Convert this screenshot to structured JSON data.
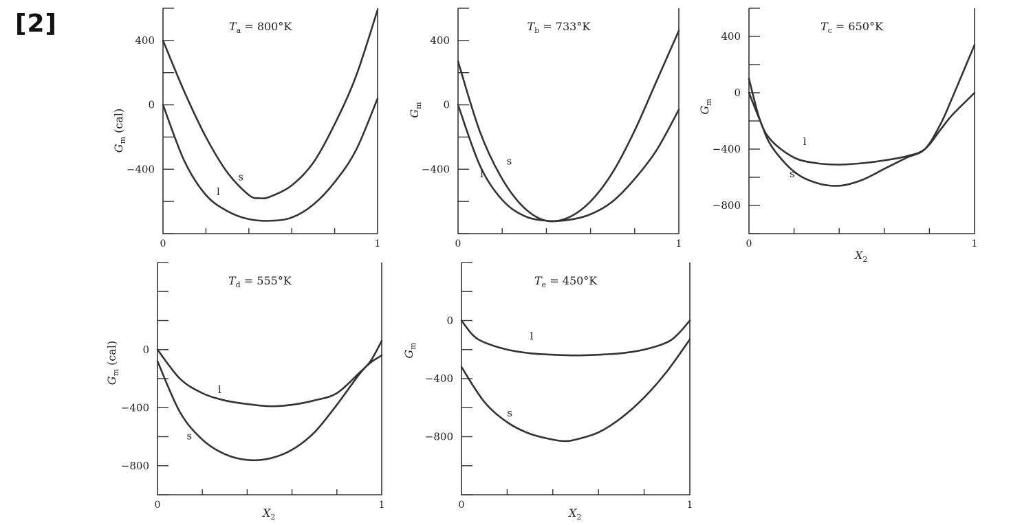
{
  "figure_label": "[2]",
  "chart_data": [
    {
      "type": "line",
      "title": "Ta = 800°K",
      "title_parts": {
        "sym": "T",
        "sub": "a",
        "rest": " = 800°K"
      },
      "xlabel": "",
      "ylabel": "Gm (cal)",
      "ylabel_parts": {
        "sym": "G",
        "sub": "m",
        "rest": " (cal)"
      },
      "xlim": [
        0,
        1
      ],
      "ylim": [
        -800,
        600
      ],
      "yticks": [
        400,
        0,
        -400
      ],
      "yticklabels": [
        "400",
        "0",
        "−400"
      ],
      "xticks": [
        0,
        1
      ],
      "xticklabels": [
        "0",
        "1"
      ],
      "series": [
        {
          "name": "s",
          "x": [
            0,
            0.1,
            0.2,
            0.3,
            0.4,
            0.45,
            0.5,
            0.6,
            0.7,
            0.8,
            0.9,
            1.0
          ],
          "y": [
            400,
            80,
            -200,
            -420,
            -560,
            -580,
            -570,
            -500,
            -360,
            -120,
            180,
            590
          ]
        },
        {
          "name": "l",
          "x": [
            0,
            0.1,
            0.2,
            0.3,
            0.4,
            0.5,
            0.6,
            0.7,
            0.8,
            0.9,
            1.0
          ],
          "y": [
            0,
            -350,
            -560,
            -660,
            -710,
            -720,
            -700,
            -620,
            -480,
            -280,
            40
          ]
        }
      ],
      "labels": [
        {
          "text": "s",
          "x": 0.35,
          "y": -470
        },
        {
          "text": "l",
          "x": 0.25,
          "y": -560
        }
      ]
    },
    {
      "type": "line",
      "title": "Tb = 733°K",
      "title_parts": {
        "sym": "T",
        "sub": "b",
        "rest": " = 733°K"
      },
      "xlabel": "",
      "ylabel": "Gm",
      "ylabel_parts": {
        "sym": "G",
        "sub": "m",
        "rest": ""
      },
      "xlim": [
        0,
        1
      ],
      "ylim": [
        -800,
        600
      ],
      "yticks": [
        400,
        0,
        -400
      ],
      "yticklabels": [
        "400",
        "0",
        "−400"
      ],
      "xticks": [
        0,
        1
      ],
      "xticklabels": [
        "0",
        "1"
      ],
      "series": [
        {
          "name": "s",
          "x": [
            0,
            0.1,
            0.2,
            0.3,
            0.4,
            0.5,
            0.6,
            0.7,
            0.8,
            0.9,
            1.0
          ],
          "y": [
            270,
            -170,
            -460,
            -640,
            -720,
            -700,
            -600,
            -420,
            -160,
            150,
            460
          ]
        },
        {
          "name": "l",
          "x": [
            0,
            0.1,
            0.2,
            0.3,
            0.4,
            0.5,
            0.6,
            0.7,
            0.8,
            0.9,
            1.0
          ],
          "y": [
            0,
            -380,
            -590,
            -690,
            -720,
            -715,
            -680,
            -600,
            -460,
            -280,
            -30
          ]
        }
      ],
      "labels": [
        {
          "text": "s",
          "x": 0.22,
          "y": -370
        },
        {
          "text": "l",
          "x": 0.1,
          "y": -450
        }
      ]
    },
    {
      "type": "line",
      "title": "Tc = 650°K",
      "title_parts": {
        "sym": "T",
        "sub": "c",
        "rest": " = 650°K"
      },
      "xlabel": "X2",
      "xlabel_parts": {
        "sym": "X",
        "sub": "2",
        "rest": ""
      },
      "ylabel": "Gm",
      "ylabel_parts": {
        "sym": "G",
        "sub": "m",
        "rest": ""
      },
      "xlim": [
        0,
        1
      ],
      "ylim": [
        -1000,
        600
      ],
      "yticks": [
        400,
        0,
        -400,
        -800
      ],
      "yticklabels": [
        "400",
        "0",
        "−400",
        "−800"
      ],
      "xticks": [
        0,
        1
      ],
      "xticklabels": [
        "0",
        "1"
      ],
      "series": [
        {
          "name": "l",
          "x": [
            0,
            0.05,
            0.1,
            0.2,
            0.3,
            0.4,
            0.5,
            0.6,
            0.7,
            0.78,
            0.85,
            0.9,
            1.0
          ],
          "y": [
            100,
            -200,
            -340,
            -460,
            -500,
            -510,
            -500,
            -480,
            -450,
            -400,
            -260,
            -160,
            0
          ]
        },
        {
          "name": "s",
          "x": [
            0,
            0.05,
            0.1,
            0.2,
            0.3,
            0.4,
            0.5,
            0.6,
            0.7,
            0.78,
            0.85,
            0.9,
            1.0
          ],
          "y": [
            0,
            -200,
            -380,
            -560,
            -640,
            -660,
            -620,
            -540,
            -460,
            -400,
            -220,
            -40,
            340
          ]
        }
      ],
      "labels": [
        {
          "text": "l",
          "x": 0.24,
          "y": -370
        },
        {
          "text": "s",
          "x": 0.18,
          "y": -600
        }
      ]
    },
    {
      "type": "line",
      "title": "Td = 555°K",
      "title_parts": {
        "sym": "T",
        "sub": "d",
        "rest": " = 555°K"
      },
      "xlabel": "X2",
      "xlabel_parts": {
        "sym": "X",
        "sub": "2",
        "rest": ""
      },
      "ylabel": "Gm (cal)",
      "ylabel_parts": {
        "sym": "G",
        "sub": "m",
        "rest": " (cal)"
      },
      "xlim": [
        0,
        1
      ],
      "ylim": [
        -1000,
        600
      ],
      "yticks": [
        0,
        -400,
        -800
      ],
      "yticklabels": [
        "0",
        "−400",
        "−800"
      ],
      "xticks": [
        0,
        1
      ],
      "xticklabels": [
        "0",
        "1"
      ],
      "series": [
        {
          "name": "l",
          "x": [
            0,
            0.1,
            0.2,
            0.3,
            0.4,
            0.5,
            0.6,
            0.7,
            0.8,
            0.9,
            0.95,
            1.0
          ],
          "y": [
            0,
            -200,
            -300,
            -350,
            -375,
            -390,
            -380,
            -350,
            -300,
            -160,
            -80,
            60
          ]
        },
        {
          "name": "s",
          "x": [
            0,
            0.1,
            0.2,
            0.3,
            0.4,
            0.5,
            0.6,
            0.7,
            0.8,
            0.9,
            0.95,
            1.0
          ],
          "y": [
            -80,
            -430,
            -620,
            -720,
            -760,
            -750,
            -690,
            -570,
            -380,
            -170,
            -90,
            -40
          ]
        }
      ],
      "labels": [
        {
          "text": "l",
          "x": 0.27,
          "y": -300
        },
        {
          "text": "s",
          "x": 0.13,
          "y": -620
        }
      ]
    },
    {
      "type": "line",
      "title": "Te = 450°K",
      "title_parts": {
        "sym": "T",
        "sub": "e",
        "rest": " = 450°K"
      },
      "xlabel": "X2",
      "xlabel_parts": {
        "sym": "X",
        "sub": "2",
        "rest": ""
      },
      "ylabel": "Gm",
      "ylabel_parts": {
        "sym": "G",
        "sub": "m",
        "rest": ""
      },
      "xlim": [
        0,
        1
      ],
      "ylim": [
        -1200,
        400
      ],
      "yticks": [
        0,
        -400,
        -800
      ],
      "yticklabels": [
        "0",
        "−400",
        "−800"
      ],
      "xticks": [
        0,
        1
      ],
      "xticklabels": [
        "0",
        "1"
      ],
      "series": [
        {
          "name": "l",
          "x": [
            0,
            0.05,
            0.1,
            0.2,
            0.3,
            0.4,
            0.5,
            0.6,
            0.7,
            0.8,
            0.9,
            0.95,
            1.0
          ],
          "y": [
            0,
            -100,
            -150,
            -200,
            -225,
            -235,
            -240,
            -235,
            -225,
            -200,
            -150,
            -90,
            0
          ]
        },
        {
          "name": "s",
          "x": [
            0,
            0.1,
            0.2,
            0.3,
            0.4,
            0.45,
            0.5,
            0.6,
            0.7,
            0.8,
            0.9,
            1.0
          ],
          "y": [
            -320,
            -560,
            -700,
            -780,
            -820,
            -830,
            -820,
            -770,
            -670,
            -530,
            -350,
            -130
          ]
        }
      ],
      "labels": [
        {
          "text": "l",
          "x": 0.3,
          "y": -130
        },
        {
          "text": "s",
          "x": 0.2,
          "y": -660
        }
      ]
    }
  ]
}
